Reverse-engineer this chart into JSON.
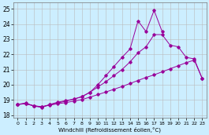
{
  "bg_color": "#cceeff",
  "line_color": "#990099",
  "grid_color": "#bbbbbb",
  "xlim": [
    -0.5,
    23.5
  ],
  "ylim": [
    17.8,
    25.4
  ],
  "yticks": [
    18,
    19,
    20,
    21,
    22,
    23,
    24,
    25
  ],
  "xticks": [
    0,
    1,
    2,
    3,
    4,
    5,
    6,
    7,
    8,
    9,
    10,
    11,
    12,
    13,
    14,
    15,
    16,
    17,
    18,
    19,
    20,
    21,
    22,
    23
  ],
  "xlabel": "Windchill (Refroidissement éolien,°C)",
  "series": [
    {
      "x": [
        0,
        1,
        2,
        3,
        4,
        5,
        6,
        7,
        8,
        9,
        10,
        11,
        12,
        13,
        14,
        15,
        16,
        17,
        18,
        19,
        20,
        21,
        22
      ],
      "y": [
        18.7,
        18.8,
        18.6,
        18.5,
        18.7,
        18.85,
        18.95,
        19.05,
        19.2,
        19.5,
        20.0,
        20.6,
        21.2,
        21.8,
        22.35,
        24.2,
        23.5,
        24.9,
        23.5,
        null,
        null,
        null,
        null
      ]
    },
    {
      "x": [
        0,
        1,
        2,
        3,
        4,
        5,
        6,
        7,
        8,
        9,
        10,
        11,
        12,
        13,
        14,
        15,
        16,
        17,
        18,
        19,
        20,
        21,
        22,
        23
      ],
      "y": [
        18.7,
        18.75,
        18.62,
        18.55,
        18.68,
        18.8,
        18.92,
        19.05,
        19.22,
        19.5,
        19.85,
        20.2,
        20.6,
        21.0,
        21.5,
        22.1,
        22.5,
        23.3,
        23.3,
        22.6,
        22.5,
        21.8,
        21.7,
        20.4
      ]
    },
    {
      "x": [
        0,
        1,
        2,
        3,
        4,
        5,
        6,
        7,
        8,
        9,
        10,
        11,
        12,
        13,
        14,
        15,
        16,
        17,
        18,
        19,
        20,
        21,
        22,
        23
      ],
      "y": [
        18.7,
        18.75,
        18.6,
        18.55,
        18.65,
        18.75,
        18.82,
        18.92,
        19.02,
        19.18,
        19.35,
        19.52,
        19.7,
        19.88,
        20.08,
        20.28,
        20.48,
        20.65,
        20.85,
        21.05,
        21.25,
        21.45,
        21.62,
        20.4
      ]
    }
  ]
}
